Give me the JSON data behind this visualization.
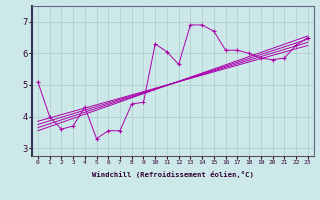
{
  "xlabel": "Windchill (Refroidissement éolien,°C)",
  "bg_color": "#cce8e8",
  "line_color": "#aa00aa",
  "grid_color": "#aacaca",
  "x_main": [
    0,
    1,
    2,
    3,
    4,
    5,
    6,
    7,
    8,
    9,
    10,
    11,
    12,
    13,
    14,
    15,
    16,
    17,
    18,
    19,
    20,
    21,
    22,
    23
  ],
  "y_main": [
    5.1,
    4.0,
    3.6,
    3.7,
    4.3,
    3.3,
    3.55,
    3.55,
    4.4,
    4.45,
    6.3,
    6.05,
    5.65,
    6.9,
    6.9,
    6.7,
    6.1,
    6.1,
    6.0,
    5.85,
    5.8,
    5.85,
    6.25,
    6.5
  ],
  "reg_lines": [
    {
      "x": [
        0,
        23
      ],
      "y": [
        3.55,
        6.55
      ]
    },
    {
      "x": [
        0,
        23
      ],
      "y": [
        3.65,
        6.45
      ]
    },
    {
      "x": [
        0,
        23
      ],
      "y": [
        3.75,
        6.35
      ]
    },
    {
      "x": [
        0,
        23
      ],
      "y": [
        3.85,
        6.25
      ]
    }
  ],
  "xlim": [
    -0.5,
    23.5
  ],
  "ylim": [
    2.75,
    7.5
  ],
  "yticks": [
    3,
    4,
    5,
    6,
    7
  ],
  "xticks": [
    0,
    1,
    2,
    3,
    4,
    5,
    6,
    7,
    8,
    9,
    10,
    11,
    12,
    13,
    14,
    15,
    16,
    17,
    18,
    19,
    20,
    21,
    22,
    23
  ]
}
